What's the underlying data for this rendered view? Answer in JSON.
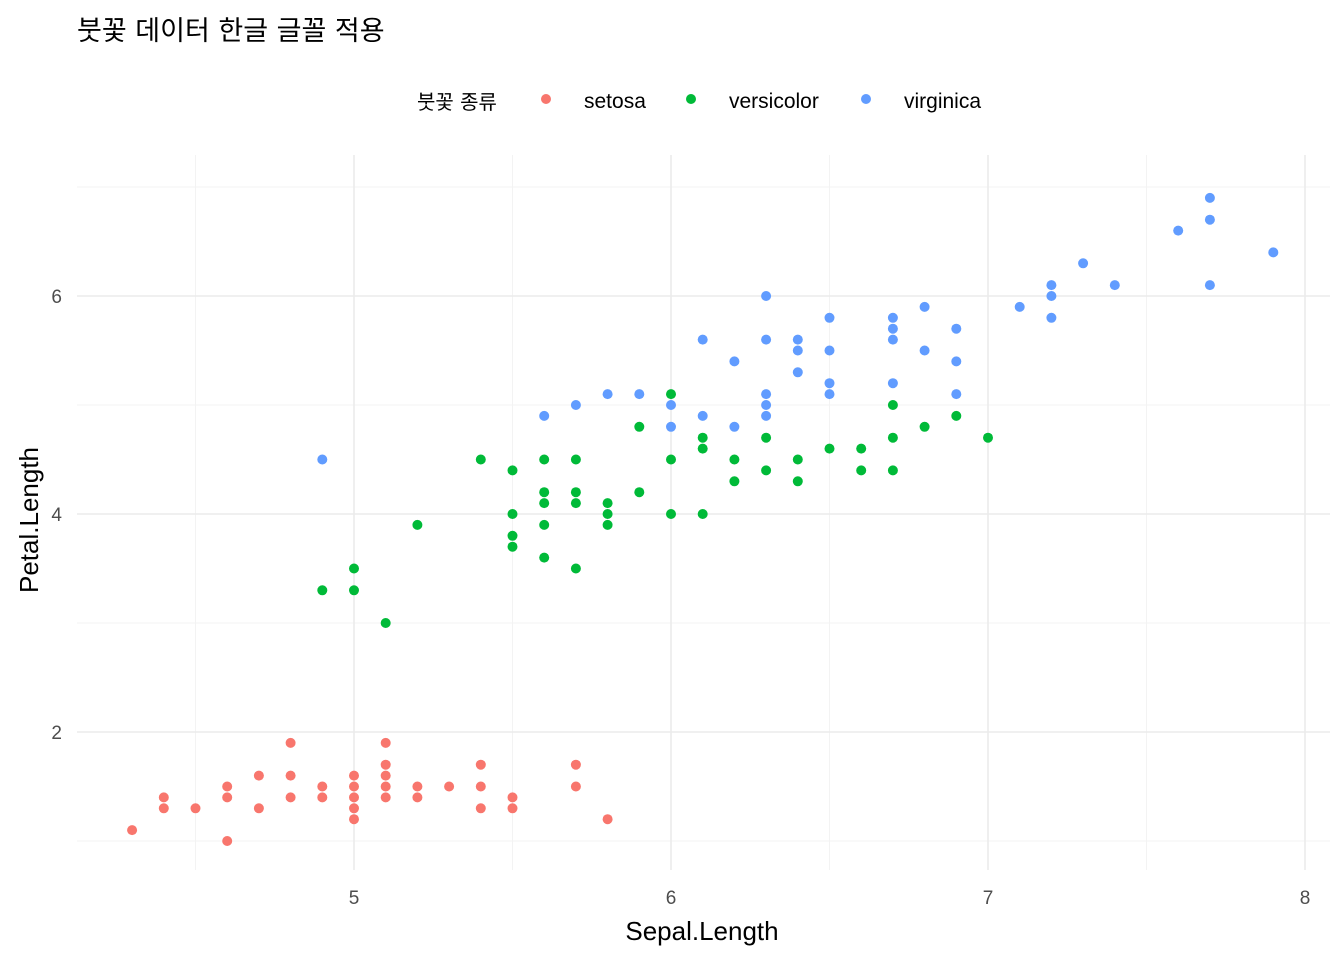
{
  "chart_data": {
    "type": "scatter",
    "title": "붓꽃 데이터 한글 글꼴 적용",
    "xlabel": "Sepal.Length",
    "ylabel": "Petal.Length",
    "xlim": [
      4.2,
      8.1
    ],
    "ylim": [
      0.8,
      7.1
    ],
    "x_ticks": [
      5,
      6,
      7,
      8
    ],
    "y_ticks": [
      2,
      4,
      6
    ],
    "x_minor": [
      4.5,
      5.5,
      6.5,
      7.5
    ],
    "y_minor": [
      1,
      3,
      5,
      7
    ],
    "grid": true,
    "legend": {
      "position": "top",
      "title": "붓꽃 종류"
    },
    "series": [
      {
        "name": "setosa",
        "color": "#F8766D",
        "points": [
          [
            4.3,
            1.1
          ],
          [
            4.4,
            1.3
          ],
          [
            4.4,
            1.4
          ],
          [
            4.5,
            1.3
          ],
          [
            4.6,
            1.0
          ],
          [
            4.6,
            1.4
          ],
          [
            4.6,
            1.5
          ],
          [
            4.7,
            1.3
          ],
          [
            4.7,
            1.6
          ],
          [
            4.8,
            1.4
          ],
          [
            4.8,
            1.6
          ],
          [
            4.8,
            1.9
          ],
          [
            4.9,
            1.4
          ],
          [
            4.9,
            1.5
          ],
          [
            5.0,
            1.2
          ],
          [
            5.0,
            1.3
          ],
          [
            5.0,
            1.4
          ],
          [
            5.0,
            1.5
          ],
          [
            5.0,
            1.6
          ],
          [
            5.1,
            1.4
          ],
          [
            5.1,
            1.5
          ],
          [
            5.1,
            1.6
          ],
          [
            5.1,
            1.7
          ],
          [
            5.1,
            1.9
          ],
          [
            5.2,
            1.4
          ],
          [
            5.2,
            1.5
          ],
          [
            5.3,
            1.5
          ],
          [
            5.4,
            1.3
          ],
          [
            5.4,
            1.5
          ],
          [
            5.4,
            1.7
          ],
          [
            5.5,
            1.3
          ],
          [
            5.5,
            1.4
          ],
          [
            5.7,
            1.5
          ],
          [
            5.7,
            1.7
          ],
          [
            5.8,
            1.2
          ]
        ]
      },
      {
        "name": "versicolor",
        "color": "#00BA38",
        "points": [
          [
            4.9,
            3.3
          ],
          [
            5.0,
            3.3
          ],
          [
            5.0,
            3.5
          ],
          [
            5.1,
            3.0
          ],
          [
            5.2,
            3.9
          ],
          [
            5.4,
            4.5
          ],
          [
            5.5,
            3.7
          ],
          [
            5.5,
            3.8
          ],
          [
            5.5,
            4.0
          ],
          [
            5.5,
            4.4
          ],
          [
            5.6,
            3.6
          ],
          [
            5.6,
            3.9
          ],
          [
            5.6,
            4.1
          ],
          [
            5.6,
            4.2
          ],
          [
            5.6,
            4.5
          ],
          [
            5.7,
            3.5
          ],
          [
            5.7,
            4.1
          ],
          [
            5.7,
            4.2
          ],
          [
            5.7,
            4.5
          ],
          [
            5.8,
            3.9
          ],
          [
            5.8,
            4.0
          ],
          [
            5.8,
            4.1
          ],
          [
            5.9,
            4.2
          ],
          [
            5.9,
            4.8
          ],
          [
            6.0,
            4.0
          ],
          [
            6.0,
            4.5
          ],
          [
            6.0,
            5.1
          ],
          [
            6.1,
            4.0
          ],
          [
            6.1,
            4.6
          ],
          [
            6.1,
            4.7
          ],
          [
            6.2,
            4.3
          ],
          [
            6.2,
            4.5
          ],
          [
            6.3,
            4.4
          ],
          [
            6.3,
            4.7
          ],
          [
            6.4,
            4.3
          ],
          [
            6.4,
            4.5
          ],
          [
            6.5,
            4.6
          ],
          [
            6.6,
            4.4
          ],
          [
            6.6,
            4.6
          ],
          [
            6.7,
            4.4
          ],
          [
            6.7,
            4.7
          ],
          [
            6.7,
            5.0
          ],
          [
            6.8,
            4.8
          ],
          [
            6.9,
            4.9
          ],
          [
            7.0,
            4.7
          ]
        ]
      },
      {
        "name": "virginica",
        "color": "#619CFF",
        "points": [
          [
            4.9,
            4.5
          ],
          [
            5.6,
            4.9
          ],
          [
            5.7,
            5.0
          ],
          [
            5.8,
            5.1
          ],
          [
            5.9,
            5.1
          ],
          [
            6.0,
            4.8
          ],
          [
            6.0,
            5.0
          ],
          [
            6.1,
            4.9
          ],
          [
            6.1,
            5.6
          ],
          [
            6.2,
            4.8
          ],
          [
            6.2,
            5.4
          ],
          [
            6.3,
            4.9
          ],
          [
            6.3,
            5.0
          ],
          [
            6.3,
            5.1
          ],
          [
            6.3,
            5.6
          ],
          [
            6.3,
            6.0
          ],
          [
            6.4,
            5.3
          ],
          [
            6.4,
            5.5
          ],
          [
            6.4,
            5.6
          ],
          [
            6.5,
            5.1
          ],
          [
            6.5,
            5.2
          ],
          [
            6.5,
            5.5
          ],
          [
            6.5,
            5.8
          ],
          [
            6.7,
            5.2
          ],
          [
            6.7,
            5.6
          ],
          [
            6.7,
            5.7
          ],
          [
            6.7,
            5.8
          ],
          [
            6.8,
            5.5
          ],
          [
            6.8,
            5.9
          ],
          [
            6.9,
            5.1
          ],
          [
            6.9,
            5.4
          ],
          [
            6.9,
            5.7
          ],
          [
            7.1,
            5.9
          ],
          [
            7.2,
            5.8
          ],
          [
            7.2,
            6.0
          ],
          [
            7.2,
            6.1
          ],
          [
            7.3,
            6.3
          ],
          [
            7.4,
            6.1
          ],
          [
            7.6,
            6.6
          ],
          [
            7.7,
            6.1
          ],
          [
            7.7,
            6.7
          ],
          [
            7.7,
            6.9
          ],
          [
            7.9,
            6.4
          ]
        ]
      }
    ]
  }
}
